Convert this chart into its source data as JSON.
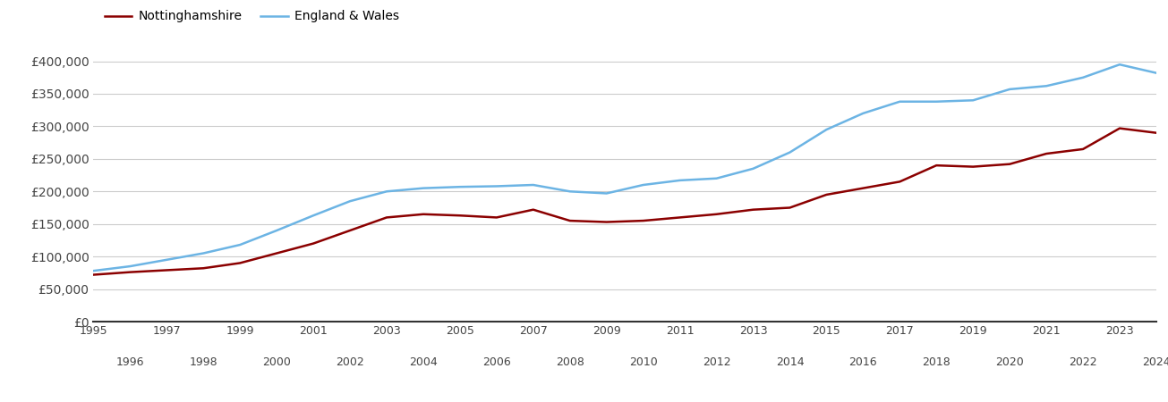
{
  "nottinghamshire": {
    "years": [
      1995,
      1996,
      1997,
      1998,
      1999,
      2000,
      2001,
      2002,
      2003,
      2004,
      2005,
      2006,
      2007,
      2008,
      2009,
      2010,
      2011,
      2012,
      2013,
      2014,
      2015,
      2016,
      2017,
      2018,
      2019,
      2020,
      2021,
      2022,
      2023,
      2024
    ],
    "values": [
      72000,
      76000,
      79000,
      82000,
      90000,
      105000,
      120000,
      140000,
      160000,
      165000,
      163000,
      160000,
      172000,
      155000,
      153000,
      155000,
      160000,
      165000,
      172000,
      175000,
      195000,
      205000,
      215000,
      240000,
      238000,
      242000,
      258000,
      265000,
      297000,
      290000
    ]
  },
  "england_wales": {
    "years": [
      1995,
      1996,
      1997,
      1998,
      1999,
      2000,
      2001,
      2002,
      2003,
      2004,
      2005,
      2006,
      2007,
      2008,
      2009,
      2010,
      2011,
      2012,
      2013,
      2014,
      2015,
      2016,
      2017,
      2018,
      2019,
      2020,
      2021,
      2022,
      2023,
      2024
    ],
    "values": [
      78000,
      85000,
      95000,
      105000,
      118000,
      140000,
      163000,
      185000,
      200000,
      205000,
      207000,
      208000,
      210000,
      200000,
      197000,
      210000,
      217000,
      220000,
      235000,
      260000,
      295000,
      320000,
      338000,
      338000,
      340000,
      357000,
      362000,
      375000,
      395000,
      382000
    ]
  },
  "nottinghamshire_color": "#8B0000",
  "england_wales_color": "#6CB4E4",
  "background_color": "#ffffff",
  "grid_color": "#cccccc",
  "line_width": 1.8,
  "legend_label_notts": "Nottinghamshire",
  "legend_label_ew": "England & Wales",
  "yticks": [
    0,
    50000,
    100000,
    150000,
    200000,
    250000,
    300000,
    350000,
    400000
  ],
  "ytick_labels": [
    "£0",
    "£50,000",
    "£100,000",
    "£150,000",
    "£200,000",
    "£250,000",
    "£300,000",
    "£350,000",
    "£400,000"
  ],
  "xlim": [
    1995,
    2024
  ],
  "ylim": [
    0,
    420000
  ],
  "odd_years": [
    1995,
    1997,
    1999,
    2001,
    2003,
    2005,
    2007,
    2009,
    2011,
    2013,
    2015,
    2017,
    2019,
    2021,
    2023
  ],
  "even_years": [
    1996,
    1998,
    2000,
    2002,
    2004,
    2006,
    2008,
    2010,
    2012,
    2014,
    2016,
    2018,
    2020,
    2022,
    2024
  ]
}
